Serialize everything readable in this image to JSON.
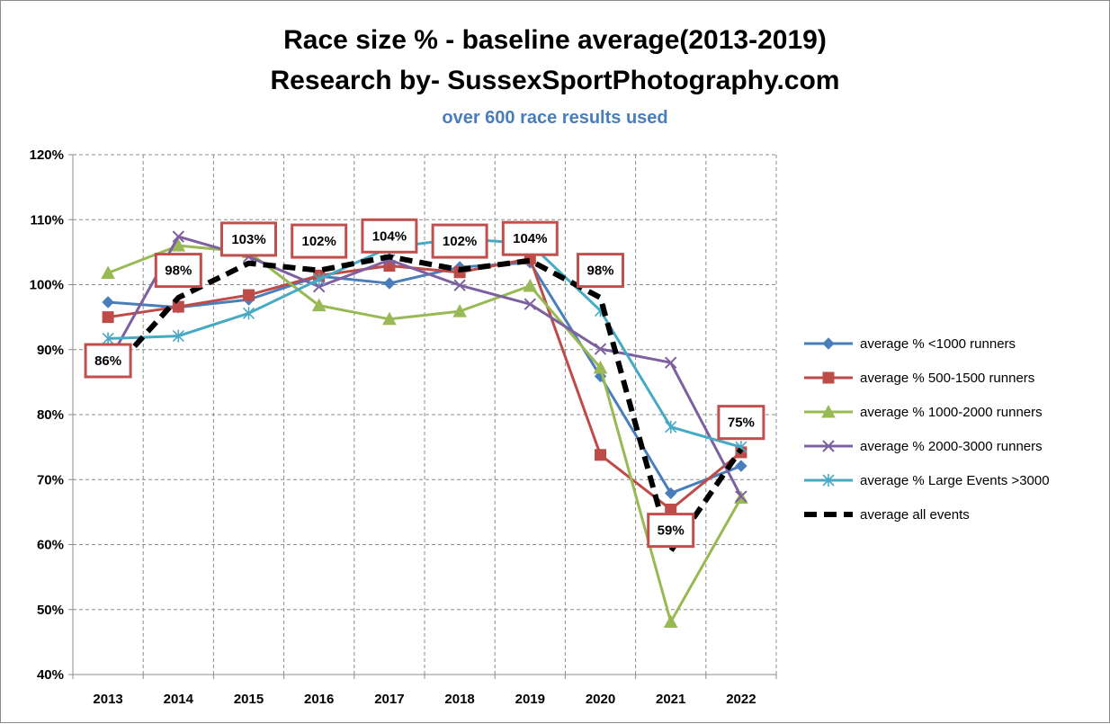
{
  "chart_data": {
    "type": "line",
    "title_line1": "Race size % - baseline average(2013-2019)",
    "title_line2": "Research  by- SussexSportPhotography.com",
    "subtitle": "over 600 race results used",
    "xlabel": "",
    "ylabel": "",
    "ylim": [
      40,
      120
    ],
    "y_ticks": [
      "40%",
      "50%",
      "60%",
      "70%",
      "80%",
      "90%",
      "100%",
      "110%",
      "120%"
    ],
    "categories": [
      "2013",
      "2014",
      "2015",
      "2016",
      "2017",
      "2018",
      "2019",
      "2020",
      "2021",
      "2022"
    ],
    "grid": "dashed",
    "legend_position": "right",
    "series": [
      {
        "name": "average % <1000 runners",
        "color": "#4a7ebb",
        "marker": "diamond",
        "dash": "solid",
        "values": [
          97.3,
          96.5,
          97.7,
          101.3,
          100.2,
          102.7,
          103.4,
          85.9,
          67.9,
          72.1
        ]
      },
      {
        "name": "average % 500-1500 runners",
        "color": "#be4b48",
        "marker": "square",
        "dash": "solid",
        "values": [
          95.0,
          96.6,
          98.4,
          101.4,
          102.9,
          101.9,
          104.0,
          73.8,
          65.4,
          74.2
        ]
      },
      {
        "name": "average % 1000-2000 runners",
        "color": "#98b954",
        "marker": "triangle",
        "dash": "solid",
        "values": [
          101.8,
          106.0,
          105.0,
          96.8,
          94.7,
          95.9,
          99.8,
          87.2,
          48.1,
          67.2
        ]
      },
      {
        "name": "average % 2000-3000 runners",
        "color": "#7d60a0",
        "marker": "x",
        "dash": "solid",
        "values": [
          88.0,
          107.4,
          104.3,
          99.7,
          103.8,
          99.9,
          97.0,
          90.1,
          88.0,
          67.4
        ]
      },
      {
        "name": "average % Large Events >3000",
        "color": "#46aac5",
        "marker": "star",
        "dash": "solid",
        "values": [
          91.7,
          92.1,
          95.6,
          100.8,
          105.7,
          107.1,
          106.3,
          96.0,
          78.1,
          75.0
        ]
      },
      {
        "name": "average all events",
        "color": "#000000",
        "marker": "none",
        "dash": "dashed",
        "values": [
          86.0,
          98.0,
          103.3,
          102.2,
          104.3,
          102.3,
          103.7,
          98.0,
          59.0,
          74.7
        ]
      }
    ],
    "callouts": [
      {
        "category": "2013",
        "label": "86%",
        "y_anchor": 88.3
      },
      {
        "category": "2014",
        "label": "98%",
        "y_anchor": 102.2
      },
      {
        "category": "2015",
        "label": "103%",
        "y_anchor": 107.0
      },
      {
        "category": "2016",
        "label": "102%",
        "y_anchor": 106.7
      },
      {
        "category": "2017",
        "label": "104%",
        "y_anchor": 107.5
      },
      {
        "category": "2018",
        "label": "102%",
        "y_anchor": 106.7
      },
      {
        "category": "2019",
        "label": "104%",
        "y_anchor": 107.1
      },
      {
        "category": "2020",
        "label": "98%",
        "y_anchor": 102.2
      },
      {
        "category": "2021",
        "label": "59%",
        "y_anchor": 62.2
      },
      {
        "category": "2022",
        "label": "75%",
        "y_anchor": 78.8
      }
    ]
  }
}
